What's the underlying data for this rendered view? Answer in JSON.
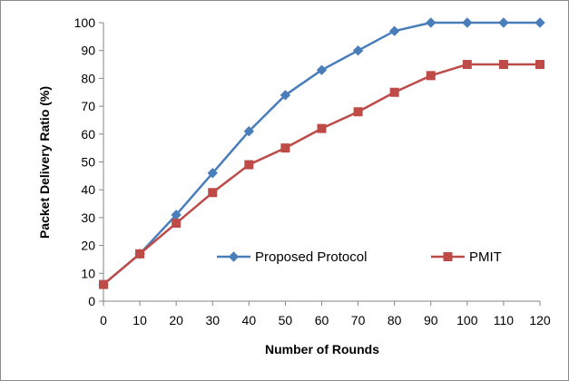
{
  "chart_data": {
    "type": "line",
    "xlabel": "Number of Rounds",
    "ylabel": "Packet Delivery Ratio (%)",
    "x": [
      0,
      10,
      20,
      30,
      40,
      50,
      60,
      70,
      80,
      90,
      100,
      110,
      120
    ],
    "xlim": [
      0,
      120
    ],
    "ylim": [
      0,
      100
    ],
    "x_ticks": [
      0,
      10,
      20,
      30,
      40,
      50,
      60,
      70,
      80,
      90,
      100,
      110,
      120
    ],
    "y_ticks": [
      0,
      10,
      20,
      30,
      40,
      50,
      60,
      70,
      80,
      90,
      100
    ],
    "grid": false,
    "legend_position": "inside-bottom-right",
    "series": [
      {
        "name": "Proposed Protocol",
        "color": "#4A7EBB",
        "marker": "diamond",
        "values": [
          6,
          17,
          31,
          46,
          61,
          74,
          83,
          90,
          97,
          100,
          100,
          100,
          100
        ]
      },
      {
        "name": "PMIT",
        "color": "#BE4B48",
        "marker": "square",
        "values": [
          6,
          17,
          28,
          39,
          49,
          55,
          62,
          68,
          75,
          81,
          85,
          85,
          85
        ]
      }
    ]
  }
}
